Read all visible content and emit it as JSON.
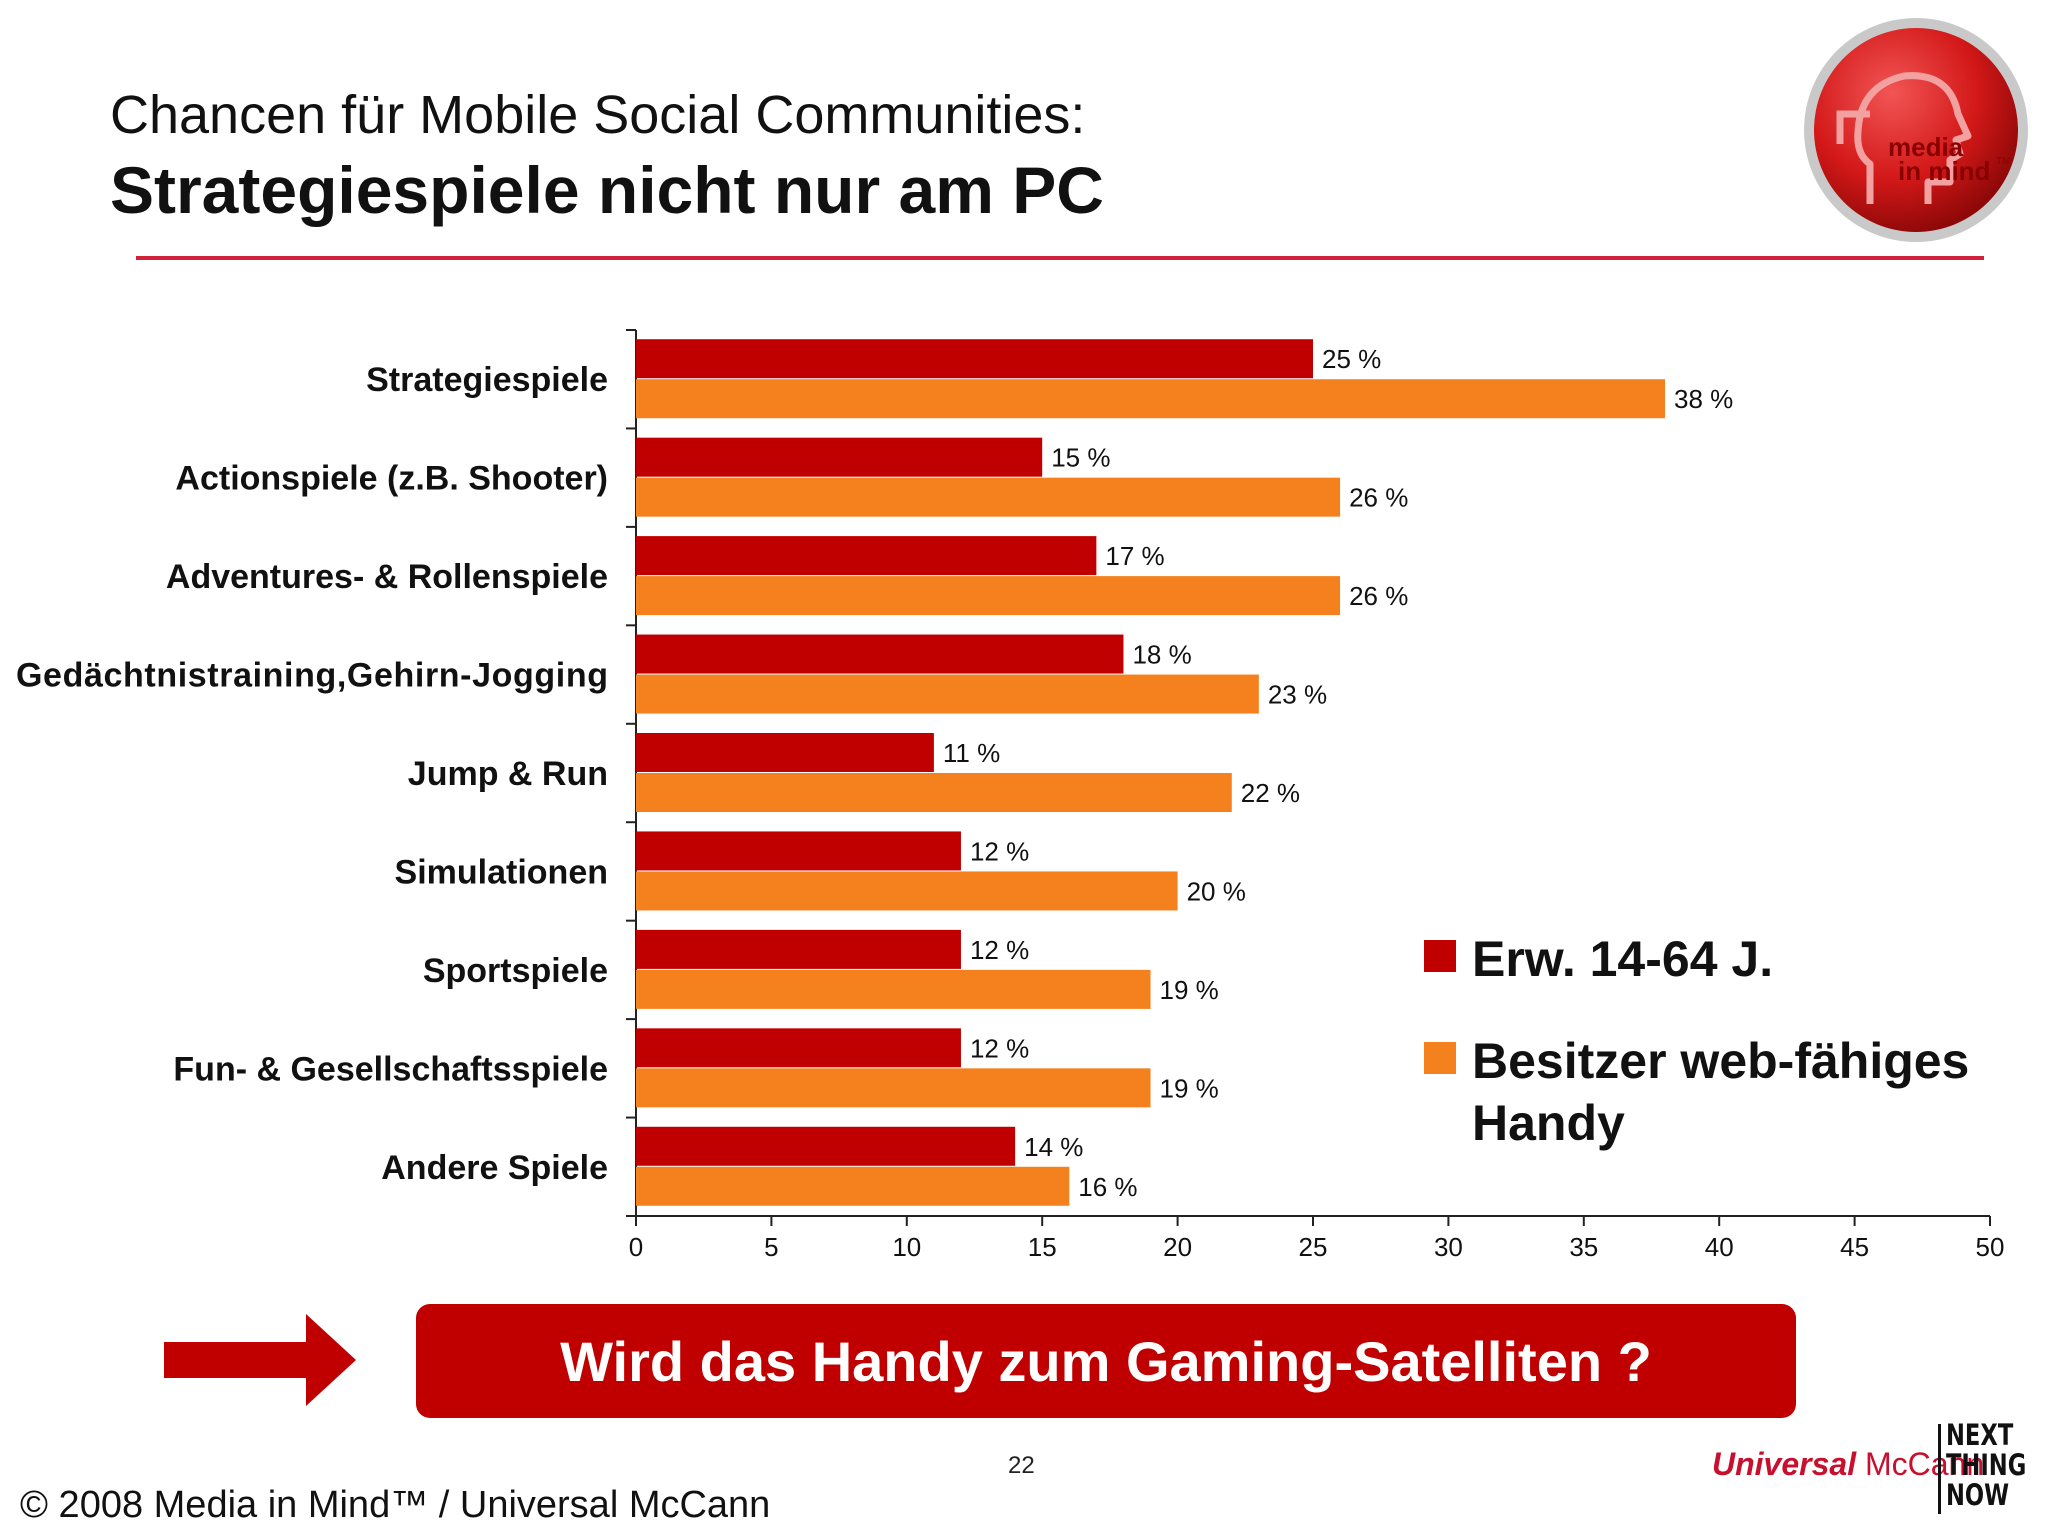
{
  "header": {
    "title_line1": "Chancen für Mobile Social Communities:",
    "title_line2": "Strategiespiele nicht nur am PC"
  },
  "logo": {
    "text_line1": "media",
    "text_line2": "in mind",
    "trademark": "TM",
    "icon": "head-profile-icon"
  },
  "chart_data": {
    "type": "bar",
    "orientation": "horizontal",
    "categories": [
      "Strategiespiele",
      "Actionspiele (z.B. Shooter)",
      "Adventures- & Rollenspiele",
      "Gedächtnistraining,Gehirn-Jogging",
      "Jump & Run",
      "Simulationen",
      "Sportspiele",
      "Fun- & Gesellschaftsspiele",
      "Andere Spiele"
    ],
    "series": [
      {
        "name": "Erw. 14-64 J.",
        "color": "#c00000",
        "values": [
          25,
          15,
          17,
          18,
          11,
          12,
          12,
          12,
          14
        ]
      },
      {
        "name": "Besitzer web-fähiges Handy",
        "color": "#f5801e",
        "values": [
          38,
          26,
          26,
          23,
          22,
          20,
          19,
          19,
          16
        ]
      }
    ],
    "value_suffix": " %",
    "xlim": [
      0,
      50
    ],
    "xticks": [
      0,
      5,
      10,
      15,
      20,
      25,
      30,
      35,
      40,
      45,
      50
    ],
    "grid": false,
    "legend_position": "right"
  },
  "legend": {
    "item1": "Erw. 14-64 J.",
    "item2_line1": "Besitzer web-fähiges",
    "item2_line2": "Handy"
  },
  "callout": {
    "arrow_icon": "right-arrow-icon",
    "text": "Wird das Handy zum Gaming-Satelliten ?"
  },
  "footer": {
    "page_number": "22",
    "copyright": "© 2008 Media in Mind™ / Universal McCann",
    "agency_bold": "Universal",
    "agency_name": "McCann",
    "tagline_1": "NEXT",
    "tagline_2": "THING",
    "tagline_3": "NOW"
  }
}
